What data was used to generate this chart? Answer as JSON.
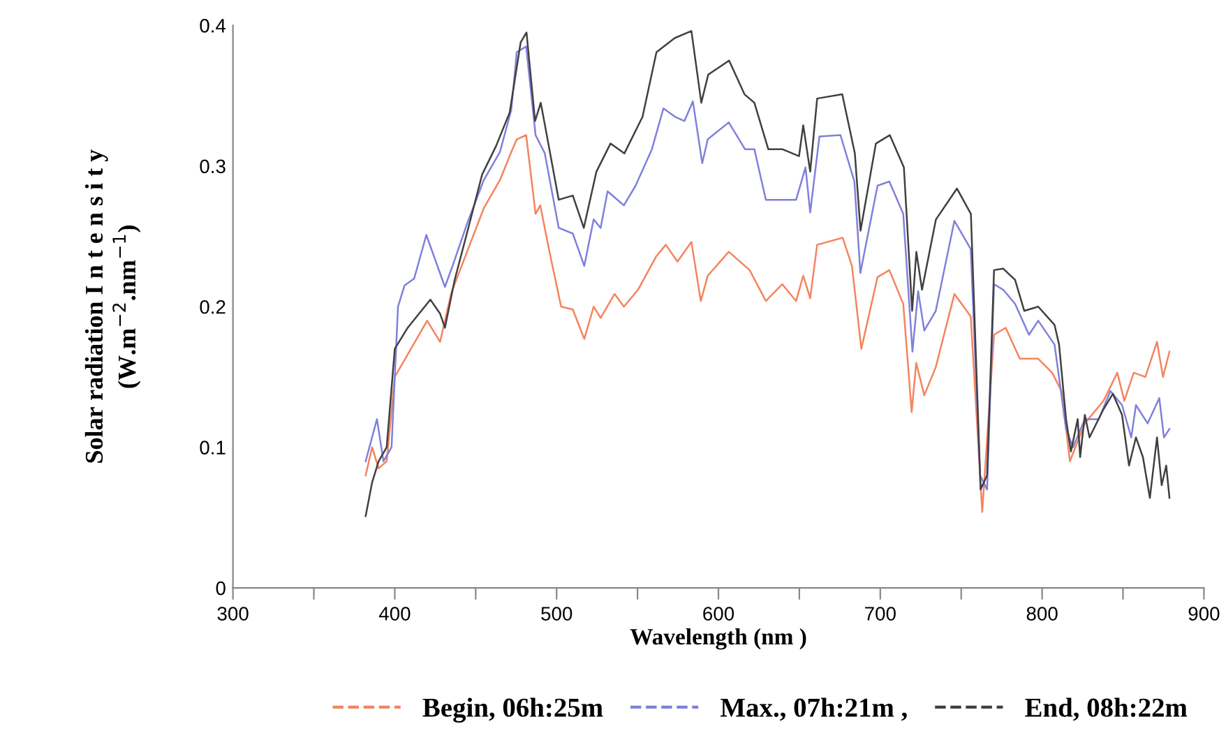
{
  "chart_data": {
    "type": "line",
    "xlabel": "Wavelength (nm )",
    "ylabel": "Solar radiation I n t e n s i t y\n(W.m$^{−2}$.nm$^{−1}$)",
    "xlim": [
      300,
      900
    ],
    "xticks": [
      300,
      {
        "value": 350,
        "label": null
      },
      400,
      {
        "value": 450,
        "label": null
      },
      500,
      {
        "value": 550,
        "label": null
      },
      600,
      {
        "value": 650,
        "label": null
      },
      700,
      {
        "value": 750,
        "label": null
      },
      800,
      {
        "value": 850,
        "label": null
      },
      900
    ],
    "ylim": [
      0,
      0.4
    ],
    "yticks": [
      0,
      0.1,
      0.2,
      0.3,
      0.4
    ],
    "grid": false,
    "legend": "bottom",
    "marker": "none",
    "line_style": "solid",
    "series": [
      {
        "name": "Begin, 06h:25m",
        "color": "#f4845f",
        "x": [
          382,
          386,
          390,
          395,
          400,
          410,
          420,
          428,
          435,
          445,
          455,
          465,
          472,
          475.4,
          481.2,
          487,
          489.9,
          495.6,
          502.8,
          510,
          517.1,
          522.9,
          527.2,
          535.8,
          541.6,
          550.3,
          561.7,
          567.5,
          574.7,
          583.3,
          589.1,
          593.4,
          606.4,
          619.3,
          629.3,
          639.4,
          648,
          652.4,
          656.7,
          661,
          676.8,
          682.5,
          688.3,
          698.3,
          705.6,
          714.2,
          719.4,
          722.2,
          727.2,
          734.3,
          745.8,
          755.9,
          763,
          770.3,
          777.5,
          786.2,
          797.6,
          806.2,
          812,
          817.2,
          826.4,
          837.9,
          846.5,
          850.8,
          856.6,
          863.8,
          871,
          874.7,
          878.7
        ],
        "values": [
          0.08,
          0.1,
          0.085,
          0.09,
          0.15,
          0.17,
          0.19,
          0.175,
          0.21,
          0.24,
          0.27,
          0.29,
          0.31,
          0.319,
          0.322,
          0.266,
          0.272,
          0.239,
          0.2,
          0.198,
          0.177,
          0.2,
          0.192,
          0.209,
          0.2,
          0.212,
          0.236,
          0.244,
          0.232,
          0.246,
          0.204,
          0.222,
          0.239,
          0.226,
          0.204,
          0.216,
          0.204,
          0.222,
          0.206,
          0.244,
          0.249,
          0.229,
          0.17,
          0.221,
          0.226,
          0.202,
          0.125,
          0.16,
          0.137,
          0.157,
          0.209,
          0.193,
          0.054,
          0.18,
          0.185,
          0.163,
          0.163,
          0.153,
          0.14,
          0.09,
          0.117,
          0.133,
          0.153,
          0.133,
          0.153,
          0.15,
          0.175,
          0.15,
          0.168
        ]
      },
      {
        "name": "Max., 07h:21m ,",
        "color": "#8080dc",
        "x": [
          382,
          389,
          393,
          398,
          402,
          406,
          412,
          419.5,
          431,
          436,
          445,
          455,
          465,
          472,
          475.4,
          481.2,
          487,
          492.7,
          501.3,
          510,
          517.1,
          522.9,
          527.2,
          531.5,
          541.6,
          548.8,
          558.9,
          566,
          573.2,
          579,
          584.2,
          590,
          593.4,
          606.4,
          616.4,
          622.2,
          629.3,
          648,
          653.8,
          656.7,
          662.4,
          675.4,
          684,
          687.7,
          698.3,
          705.6,
          714.2,
          719.9,
          723.4,
          727.2,
          734.3,
          745.8,
          755.9,
          761.7,
          766,
          770.3,
          776,
          783.3,
          791.9,
          797.6,
          807.7,
          814.8,
          819.1,
          826.4,
          835,
          842.2,
          849.4,
          855.1,
          858,
          865.2,
          872.4,
          875.3,
          878.7
        ],
        "values": [
          0.09,
          0.12,
          0.09,
          0.1,
          0.2,
          0.215,
          0.22,
          0.251,
          0.214,
          0.23,
          0.26,
          0.29,
          0.31,
          0.34,
          0.381,
          0.385,
          0.322,
          0.309,
          0.256,
          0.252,
          0.229,
          0.262,
          0.256,
          0.282,
          0.272,
          0.286,
          0.312,
          0.341,
          0.335,
          0.332,
          0.346,
          0.302,
          0.319,
          0.331,
          0.312,
          0.312,
          0.276,
          0.276,
          0.299,
          0.267,
          0.321,
          0.322,
          0.289,
          0.224,
          0.286,
          0.289,
          0.266,
          0.168,
          0.211,
          0.183,
          0.197,
          0.261,
          0.241,
          0.08,
          0.07,
          0.216,
          0.212,
          0.202,
          0.18,
          0.19,
          0.173,
          0.113,
          0.1,
          0.12,
          0.12,
          0.14,
          0.13,
          0.107,
          0.13,
          0.117,
          0.135,
          0.107,
          0.113
        ]
      },
      {
        "name": "End, 08h:22m",
        "color": "#404040",
        "x": [
          382,
          386,
          390,
          395,
          400,
          408,
          415,
          422,
          428,
          431,
          437,
          445,
          454,
          462.5,
          471,
          477.8,
          481.4,
          486.7,
          490.2,
          492.8,
          501.3,
          510,
          516.8,
          524.6,
          533.3,
          541.9,
          553.1,
          561.7,
          573,
          583.3,
          589.4,
          593.7,
          606.6,
          616.1,
          622.2,
          630.8,
          639.4,
          649.8,
          652.4,
          656.7,
          661,
          676.5,
          684.3,
          687.8,
          697.3,
          705.9,
          714.6,
          719.7,
          722.3,
          725.8,
          734.4,
          747.4,
          756,
          762,
          766,
          770.3,
          776,
          783.3,
          789,
          797.6,
          807.7,
          810.5,
          814.8,
          817.8,
          822,
          823.5,
          826.4,
          829.3,
          837.9,
          843.7,
          849.4,
          853.7,
          858,
          862.3,
          866.6,
          871,
          873.9,
          876.7,
          878.7
        ],
        "values": [
          0.051,
          0.075,
          0.09,
          0.1,
          0.17,
          0.185,
          0.195,
          0.205,
          0.195,
          0.185,
          0.219,
          0.254,
          0.294,
          0.314,
          0.338,
          0.388,
          0.395,
          0.332,
          0.345,
          0.329,
          0.276,
          0.279,
          0.256,
          0.296,
          0.316,
          0.309,
          0.335,
          0.381,
          0.391,
          0.396,
          0.345,
          0.365,
          0.375,
          0.351,
          0.345,
          0.312,
          0.312,
          0.307,
          0.329,
          0.296,
          0.348,
          0.351,
          0.309,
          0.254,
          0.316,
          0.322,
          0.299,
          0.197,
          0.239,
          0.212,
          0.262,
          0.284,
          0.266,
          0.07,
          0.08,
          0.226,
          0.227,
          0.219,
          0.197,
          0.2,
          0.187,
          0.173,
          0.12,
          0.097,
          0.12,
          0.093,
          0.123,
          0.107,
          0.127,
          0.138,
          0.123,
          0.087,
          0.107,
          0.093,
          0.064,
          0.107,
          0.073,
          0.087,
          0.064
        ]
      }
    ]
  }
}
